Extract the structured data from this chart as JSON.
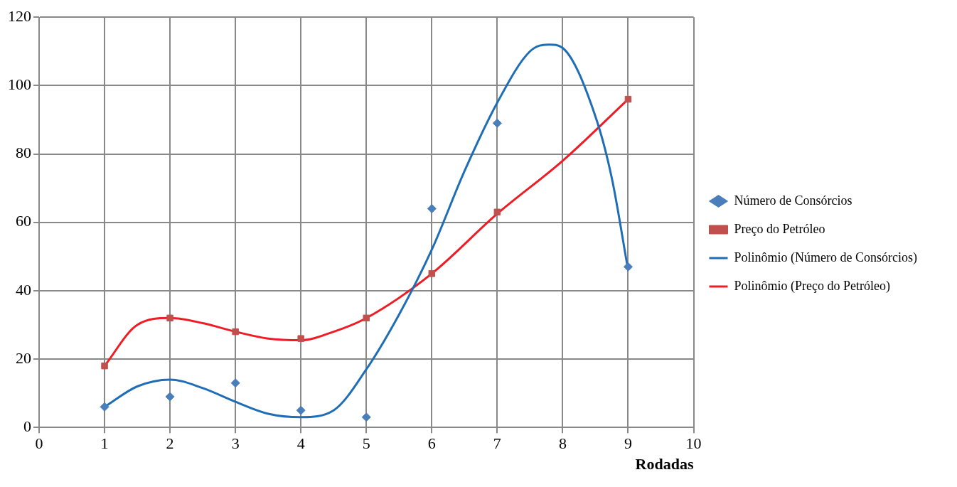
{
  "chart_data": {
    "type": "scatter",
    "xlabel": "Rodadas",
    "x": [
      1,
      2,
      3,
      4,
      5,
      6,
      7,
      9
    ],
    "series": [
      {
        "name": "Número de Consórcios",
        "type": "scatter",
        "marker": "diamond",
        "color": "#4a7ebb",
        "values": [
          6,
          9,
          13,
          5,
          3,
          64,
          89,
          47
        ]
      },
      {
        "name": "Preço do Petróleo",
        "type": "scatter",
        "marker": "square",
        "color": "#c0504d",
        "values": [
          18,
          32,
          28,
          26,
          32,
          45,
          63,
          96
        ]
      },
      {
        "name": "Polinômio (Número de Consórcios)",
        "type": "line",
        "marker": "none",
        "color": "#1f6eb5",
        "x": [
          1,
          1.5,
          2,
          2.5,
          3,
          3.5,
          4,
          4.5,
          5,
          5.5,
          6,
          6.5,
          7,
          7.5,
          7.8,
          8,
          8.5,
          8.75,
          9
        ],
        "values": [
          6,
          12,
          14,
          11.5,
          7.5,
          4,
          3,
          5,
          17,
          33,
          52,
          75,
          95,
          110,
          112,
          111,
          91,
          73,
          46
        ]
      },
      {
        "name": "Polinômio (Preço do Petróleo)",
        "type": "line",
        "marker": "none",
        "color": "#ee1c24",
        "x": [
          1,
          1.5,
          2,
          2.5,
          3,
          3.5,
          4,
          4.5,
          5,
          6,
          7,
          8,
          9
        ],
        "values": [
          18,
          30,
          32,
          30.5,
          28,
          26,
          25.5,
          28,
          32,
          45,
          62.5,
          78,
          96
        ]
      }
    ],
    "xlim": [
      0,
      10
    ],
    "xticks": [
      0,
      1,
      2,
      3,
      4,
      5,
      6,
      7,
      8,
      9,
      10
    ],
    "ylim": [
      0,
      120
    ],
    "yticks": [
      0,
      20,
      40,
      60,
      80,
      100,
      120
    ],
    "grid": true,
    "legend": "right"
  }
}
